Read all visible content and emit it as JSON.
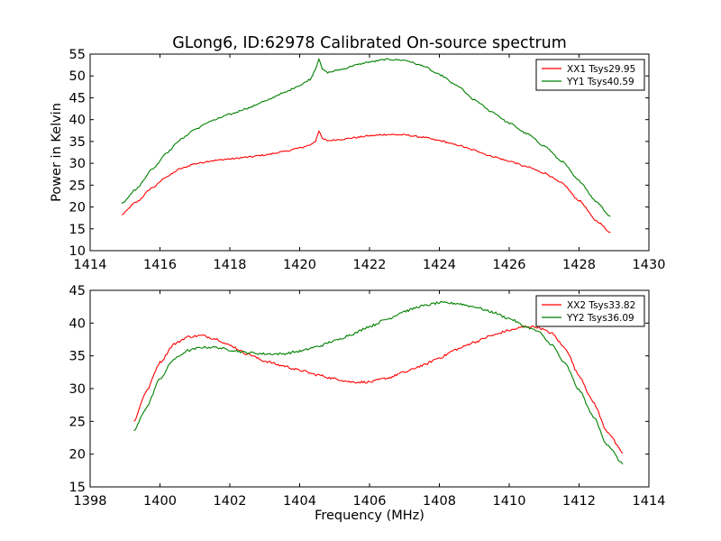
{
  "figure": {
    "title": "GLong6, ID:62978 Calibrated On-source spectrum"
  },
  "colors": {
    "xx": "#ff0000",
    "yy": "#008000"
  },
  "chart_data": [
    {
      "type": "line",
      "title": "GLong6, ID:62978 Calibrated On-source spectrum",
      "xlabel": "",
      "ylabel": "Power in Kelvin",
      "xlim": [
        1414,
        1430
      ],
      "ylim": [
        10,
        55
      ],
      "xticks": [
        1414,
        1416,
        1418,
        1420,
        1422,
        1424,
        1426,
        1428,
        1430
      ],
      "yticks": [
        10,
        15,
        20,
        25,
        30,
        35,
        40,
        45,
        50,
        55
      ],
      "grid": false,
      "legend_position": "top-right",
      "series": [
        {
          "name": "XX1 Tsys29.95",
          "color": "#ff0000",
          "points": [
            [
              1414.9,
              18.2
            ],
            [
              1415.3,
              21.0
            ],
            [
              1415.8,
              24.5
            ],
            [
              1416.2,
              27.0
            ],
            [
              1416.6,
              28.8
            ],
            [
              1417.0,
              29.9
            ],
            [
              1417.5,
              30.6
            ],
            [
              1418.0,
              31.0
            ],
            [
              1418.5,
              31.4
            ],
            [
              1419.0,
              31.9
            ],
            [
              1419.5,
              32.6
            ],
            [
              1420.0,
              33.5
            ],
            [
              1420.3,
              34.2
            ],
            [
              1420.45,
              35.0
            ],
            [
              1420.55,
              37.5
            ],
            [
              1420.65,
              35.6
            ],
            [
              1420.8,
              35.2
            ],
            [
              1421.2,
              35.5
            ],
            [
              1421.6,
              35.9
            ],
            [
              1422.0,
              36.3
            ],
            [
              1422.5,
              36.6
            ],
            [
              1423.0,
              36.5
            ],
            [
              1423.5,
              36.0
            ],
            [
              1424.0,
              35.2
            ],
            [
              1424.5,
              34.2
            ],
            [
              1425.0,
              33.0
            ],
            [
              1425.5,
              31.6
            ],
            [
              1426.0,
              30.5
            ],
            [
              1426.5,
              29.2
            ],
            [
              1427.0,
              27.8
            ],
            [
              1427.5,
              25.5
            ],
            [
              1428.0,
              21.5
            ],
            [
              1428.5,
              16.8
            ],
            [
              1428.9,
              14.2
            ]
          ]
        },
        {
          "name": "YY1 Tsys40.59",
          "color": "#008000",
          "points": [
            [
              1414.9,
              20.8
            ],
            [
              1415.3,
              24.0
            ],
            [
              1415.8,
              28.8
            ],
            [
              1416.2,
              32.5
            ],
            [
              1416.6,
              35.5
            ],
            [
              1417.0,
              37.8
            ],
            [
              1417.5,
              39.8
            ],
            [
              1418.0,
              41.2
            ],
            [
              1418.5,
              42.6
            ],
            [
              1419.0,
              44.2
            ],
            [
              1419.5,
              46.0
            ],
            [
              1420.0,
              47.8
            ],
            [
              1420.3,
              49.2
            ],
            [
              1420.45,
              51.5
            ],
            [
              1420.55,
              54.0
            ],
            [
              1420.65,
              51.5
            ],
            [
              1420.8,
              50.8
            ],
            [
              1421.2,
              51.5
            ],
            [
              1421.6,
              52.5
            ],
            [
              1422.0,
              53.2
            ],
            [
              1422.5,
              53.8
            ],
            [
              1423.0,
              53.6
            ],
            [
              1423.5,
              52.4
            ],
            [
              1424.0,
              50.3
            ],
            [
              1424.5,
              47.8
            ],
            [
              1425.0,
              44.5
            ],
            [
              1425.5,
              41.8
            ],
            [
              1426.0,
              39.2
            ],
            [
              1426.5,
              36.8
            ],
            [
              1427.0,
              34.0
            ],
            [
              1427.5,
              30.5
            ],
            [
              1428.0,
              26.0
            ],
            [
              1428.5,
              21.2
            ],
            [
              1428.9,
              17.8
            ]
          ]
        }
      ]
    },
    {
      "type": "line",
      "title": "",
      "xlabel": "Frequency (MHz)",
      "ylabel": "",
      "xlim": [
        1398,
        1414
      ],
      "ylim": [
        15,
        45
      ],
      "xticks": [
        1398,
        1400,
        1402,
        1404,
        1406,
        1408,
        1410,
        1412,
        1414
      ],
      "yticks": [
        15,
        20,
        25,
        30,
        35,
        40,
        45
      ],
      "grid": false,
      "legend_position": "top-right",
      "series": [
        {
          "name": "XX2 Tsys33.82",
          "color": "#ff0000",
          "points": [
            [
              1399.25,
              25.0
            ],
            [
              1399.6,
              29.5
            ],
            [
              1400.0,
              34.0
            ],
            [
              1400.4,
              36.8
            ],
            [
              1400.8,
              37.9
            ],
            [
              1401.2,
              38.1
            ],
            [
              1401.6,
              37.6
            ],
            [
              1402.0,
              36.6
            ],
            [
              1402.5,
              35.3
            ],
            [
              1403.0,
              34.2
            ],
            [
              1403.5,
              33.5
            ],
            [
              1404.0,
              32.8
            ],
            [
              1404.5,
              32.1
            ],
            [
              1405.0,
              31.5
            ],
            [
              1405.5,
              31.0
            ],
            [
              1406.0,
              31.0
            ],
            [
              1406.5,
              31.6
            ],
            [
              1407.0,
              32.5
            ],
            [
              1407.5,
              33.5
            ],
            [
              1408.0,
              34.7
            ],
            [
              1408.5,
              36.0
            ],
            [
              1409.0,
              37.1
            ],
            [
              1409.5,
              38.1
            ],
            [
              1410.0,
              38.9
            ],
            [
              1410.5,
              39.5
            ],
            [
              1410.8,
              39.4
            ],
            [
              1411.2,
              38.5
            ],
            [
              1411.6,
              36.2
            ],
            [
              1412.0,
              32.0
            ],
            [
              1412.4,
              28.0
            ],
            [
              1412.8,
              23.5
            ],
            [
              1413.25,
              20.2
            ]
          ]
        },
        {
          "name": "YY2 Tsys36.09",
          "color": "#008000",
          "points": [
            [
              1399.25,
              23.5
            ],
            [
              1399.6,
              27.0
            ],
            [
              1400.0,
              31.5
            ],
            [
              1400.4,
              34.5
            ],
            [
              1400.8,
              35.8
            ],
            [
              1401.2,
              36.3
            ],
            [
              1401.6,
              36.3
            ],
            [
              1402.0,
              35.9
            ],
            [
              1402.5,
              35.5
            ],
            [
              1403.0,
              35.3
            ],
            [
              1403.5,
              35.3
            ],
            [
              1404.0,
              35.7
            ],
            [
              1404.5,
              36.4
            ],
            [
              1405.0,
              37.3
            ],
            [
              1405.5,
              38.3
            ],
            [
              1406.0,
              39.5
            ],
            [
              1406.5,
              40.6
            ],
            [
              1407.0,
              41.8
            ],
            [
              1407.5,
              42.6
            ],
            [
              1408.0,
              43.1
            ],
            [
              1408.5,
              43.0
            ],
            [
              1409.0,
              42.5
            ],
            [
              1409.5,
              41.7
            ],
            [
              1410.0,
              40.7
            ],
            [
              1410.5,
              39.4
            ],
            [
              1410.8,
              38.8
            ],
            [
              1411.2,
              36.8
            ],
            [
              1411.6,
              33.8
            ],
            [
              1412.0,
              29.8
            ],
            [
              1412.4,
              25.8
            ],
            [
              1412.8,
              21.5
            ],
            [
              1413.25,
              18.5
            ]
          ]
        }
      ]
    }
  ]
}
